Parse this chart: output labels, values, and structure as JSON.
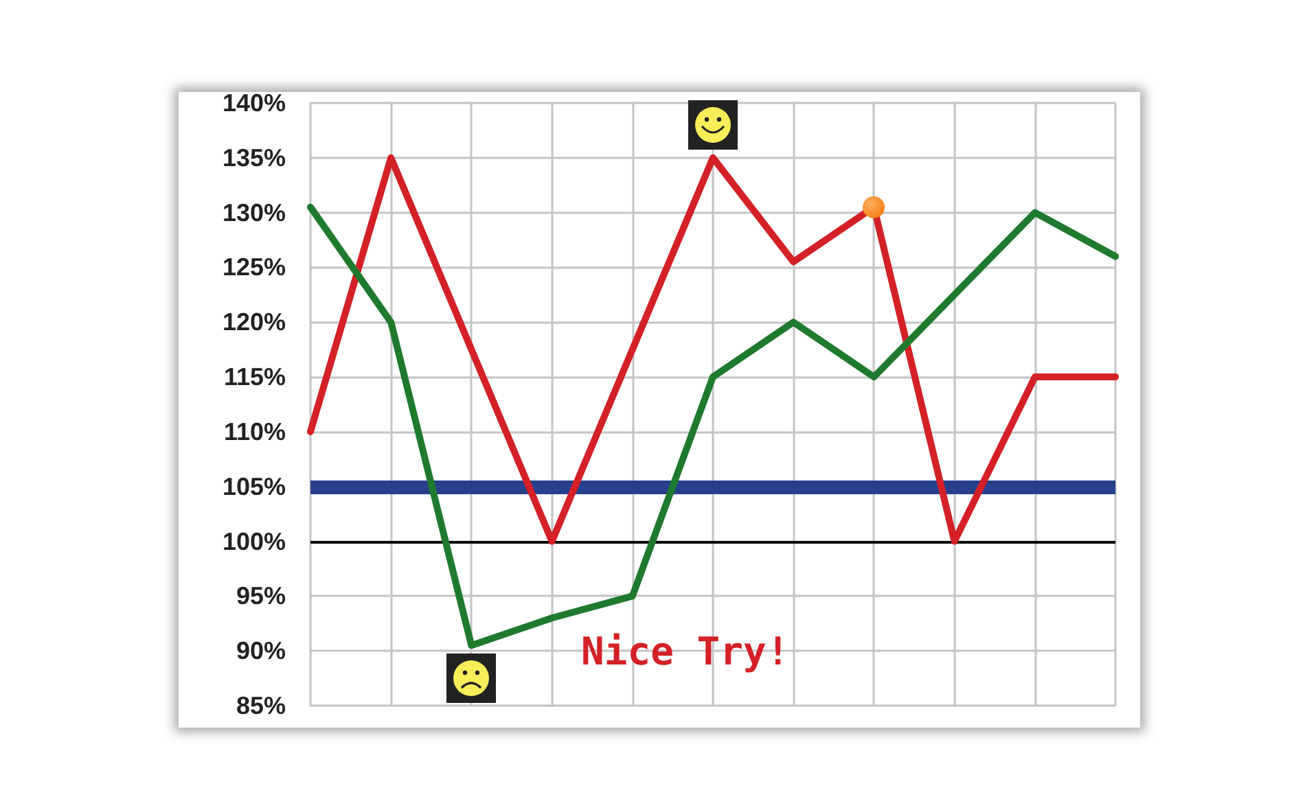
{
  "chart_data": {
    "type": "line",
    "categories": [
      null,
      null,
      null,
      null,
      null,
      null,
      null,
      null,
      null,
      null,
      null
    ],
    "series": [
      {
        "color": "#d42027",
        "values": [
          110,
          135,
          117.5,
          100,
          117.5,
          135,
          125.5,
          130.5,
          100,
          115,
          115
        ]
      },
      {
        "color": "#1f7a2e",
        "values": [
          130.5,
          120,
          90.5,
          93,
          95,
          115,
          120,
          115,
          122.5,
          130,
          126
        ]
      }
    ],
    "ylim": [
      85,
      140
    ],
    "yticks": [
      {
        "value": 85,
        "label": "85%"
      },
      {
        "value": 90,
        "label": "90%"
      },
      {
        "value": 95,
        "label": "95%"
      },
      {
        "value": 100,
        "label": "100%"
      },
      {
        "value": 105,
        "label": "105%"
      },
      {
        "value": 110,
        "label": "110%"
      },
      {
        "value": 115,
        "label": "115%"
      },
      {
        "value": 120,
        "label": "120%"
      },
      {
        "value": 125,
        "label": "125%"
      },
      {
        "value": 130,
        "label": "130%"
      },
      {
        "value": 135,
        "label": "135%"
      },
      {
        "value": 140,
        "label": "140%"
      }
    ],
    "ref_lines": [
      {
        "axis": "y",
        "value": 105,
        "color": "#27408b"
      },
      {
        "axis": "y",
        "value": 100,
        "color": "#000000"
      }
    ],
    "annotations": [
      "Nice Try!"
    ],
    "grid": true,
    "marker": "none",
    "line_style": "solid",
    "tick_labels": "y"
  }
}
